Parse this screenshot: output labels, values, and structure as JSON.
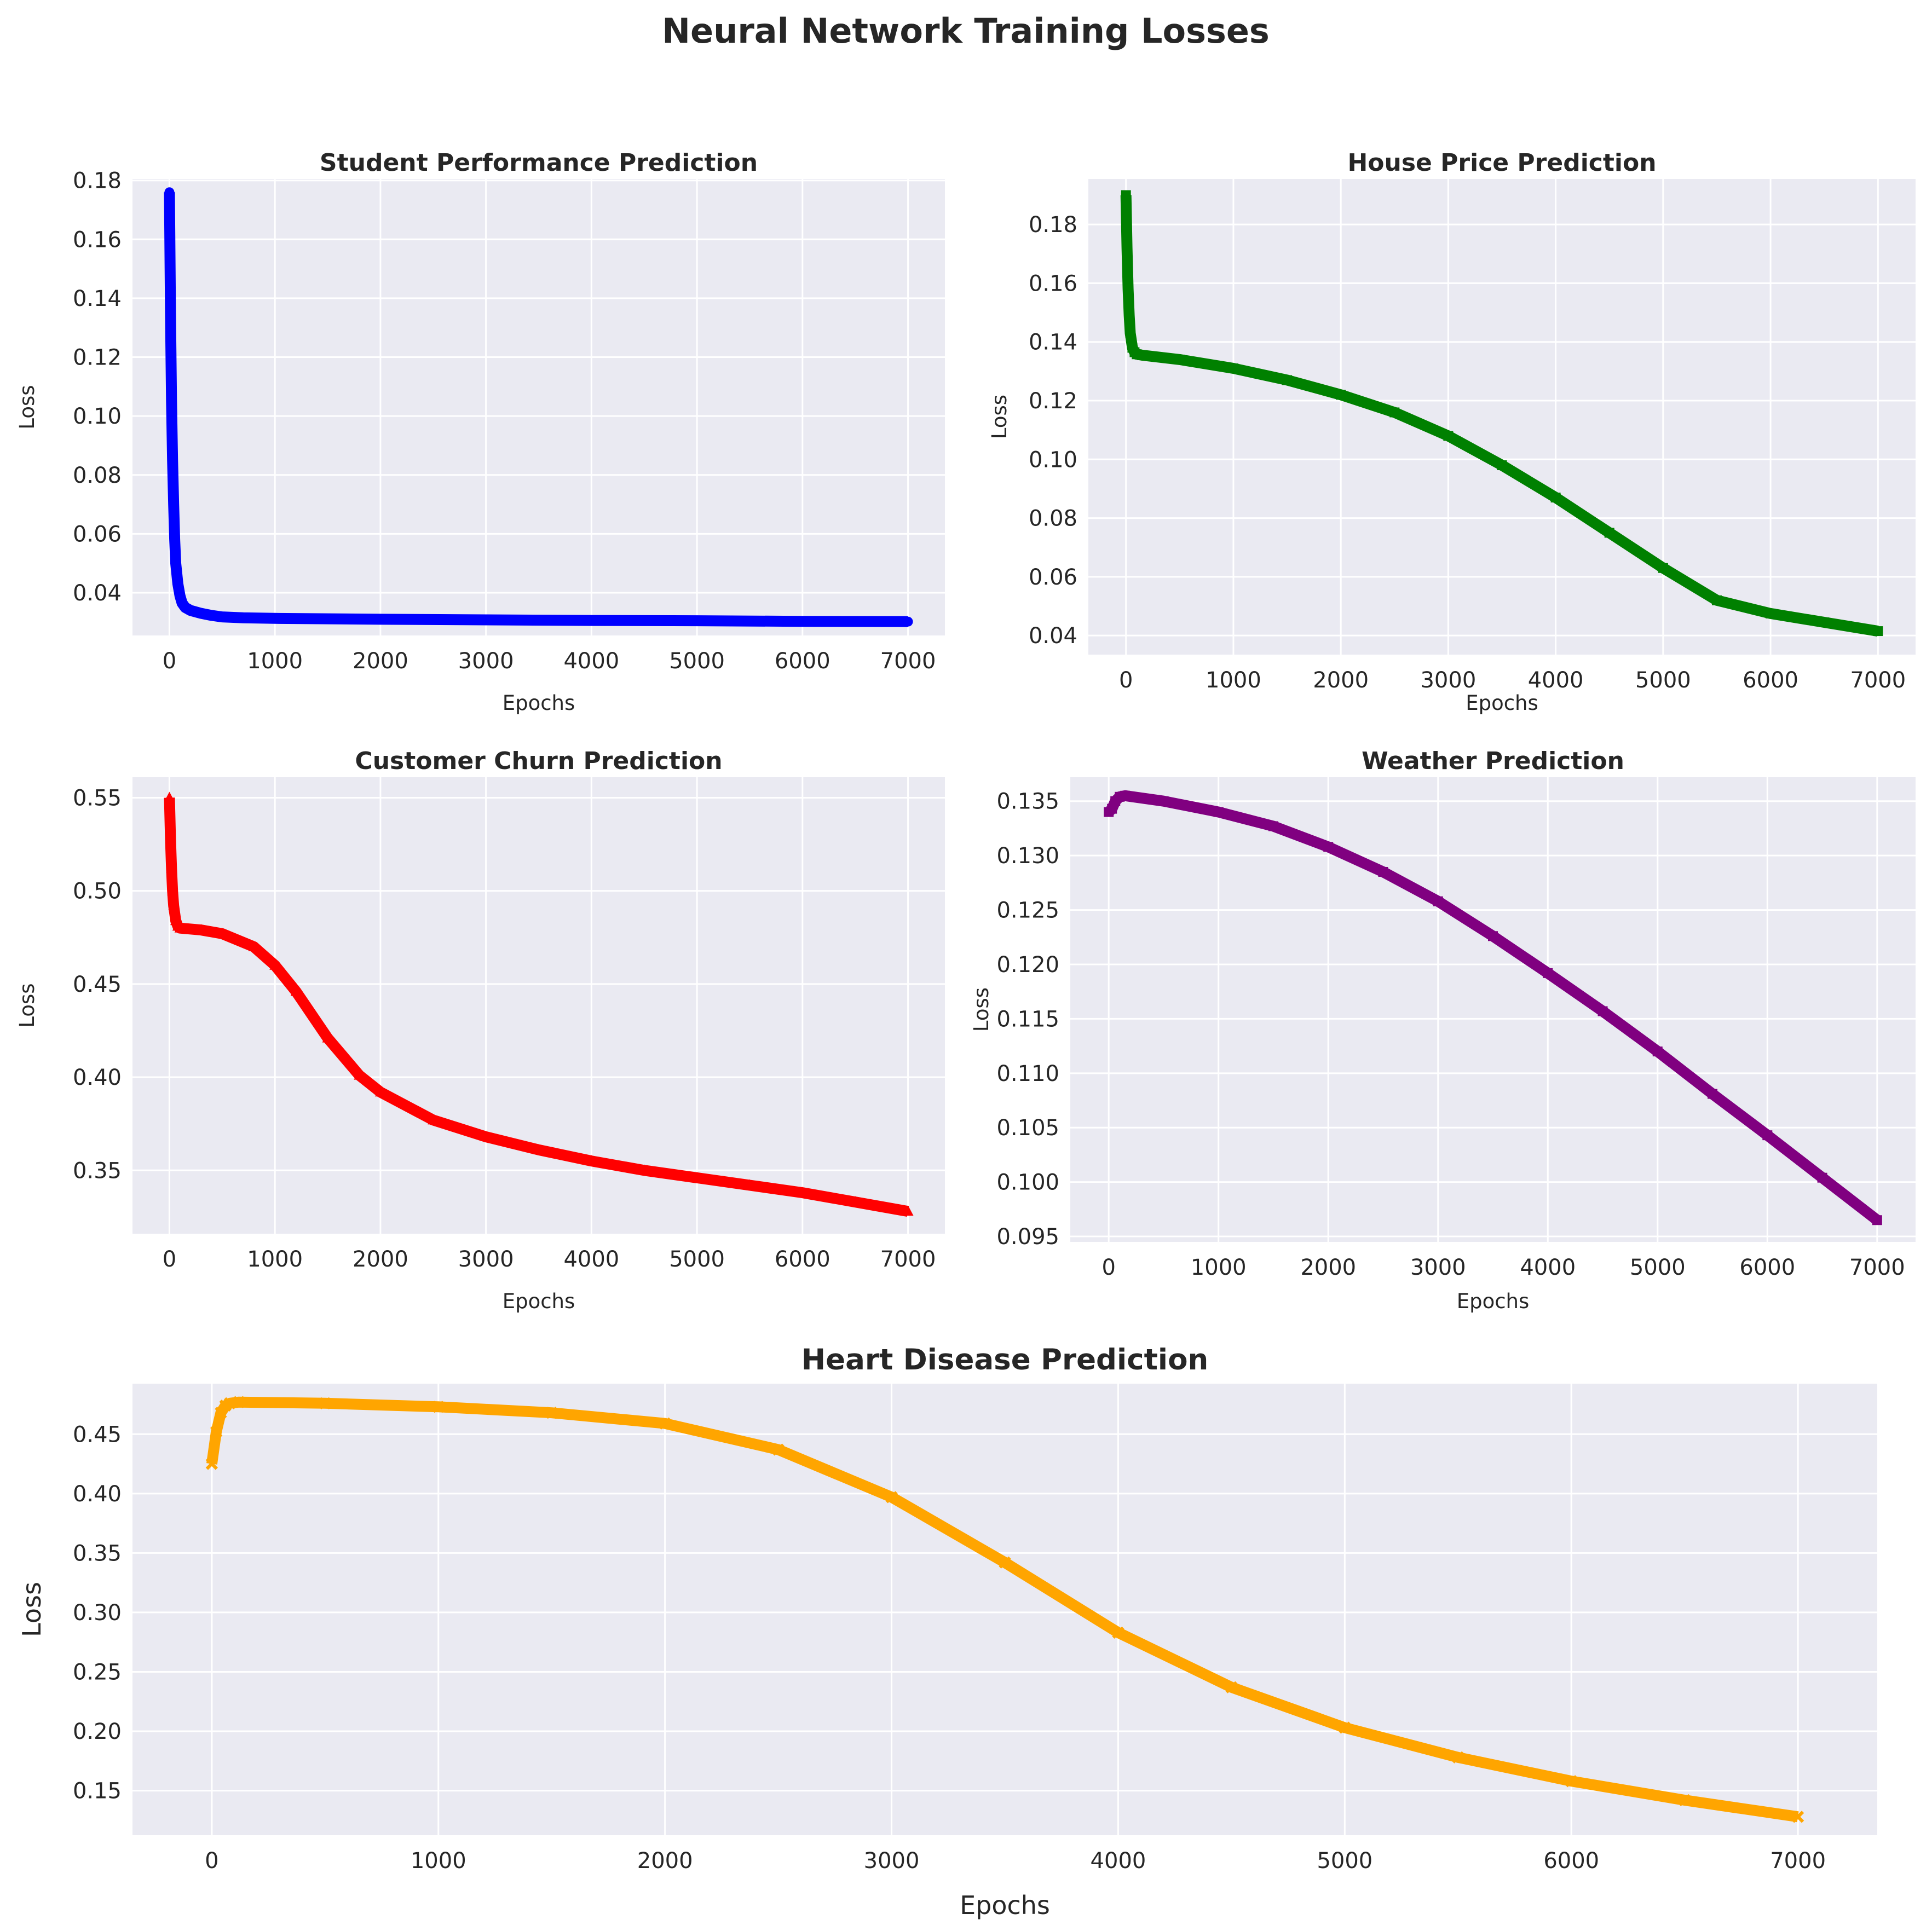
{
  "figure": {
    "title": "Neural Network Training Losses"
  },
  "chart_data": [
    {
      "type": "line",
      "title": "Student Performance Prediction",
      "xlabel": "Epochs",
      "ylabel": "Loss",
      "color": "#0000ff",
      "marker": "circle",
      "xlim": [
        -350,
        7350
      ],
      "ylim": [
        0.0255,
        0.1805
      ],
      "xticks": [
        "0",
        "1000",
        "2000",
        "3000",
        "4000",
        "5000",
        "6000",
        "7000"
      ],
      "yticks": [
        "0.04",
        "0.06",
        "0.08",
        "0.10",
        "0.12",
        "0.14",
        "0.16",
        "0.18"
      ],
      "x": [
        0,
        10,
        20,
        30,
        40,
        50,
        60,
        80,
        100,
        120,
        150,
        200,
        300,
        400,
        500,
        700,
        1000,
        2000,
        3000,
        4000,
        5000,
        6000,
        7000
      ],
      "y": [
        0.176,
        0.135,
        0.105,
        0.085,
        0.07,
        0.058,
        0.05,
        0.043,
        0.039,
        0.0365,
        0.035,
        0.034,
        0.033,
        0.0323,
        0.0318,
        0.0315,
        0.0313,
        0.031,
        0.0308,
        0.0306,
        0.0305,
        0.0303,
        0.0302
      ],
      "grid": true
    },
    {
      "type": "line",
      "title": "House Price Prediction",
      "xlabel": "Epochs",
      "ylabel": "Loss",
      "color": "#008000",
      "marker": "square",
      "xlim": [
        -350,
        7350
      ],
      "ylim": [
        0.0335,
        0.1955
      ],
      "xticks": [
        "0",
        "1000",
        "2000",
        "3000",
        "4000",
        "5000",
        "6000",
        "7000"
      ],
      "yticks": [
        "0.04",
        "0.06",
        "0.08",
        "0.10",
        "0.12",
        "0.14",
        "0.16",
        "0.18"
      ],
      "x": [
        0,
        10,
        20,
        30,
        40,
        60,
        80,
        100,
        150,
        500,
        1000,
        1500,
        2000,
        2500,
        3000,
        3500,
        4000,
        4500,
        5000,
        5500,
        6000,
        6500,
        7000
      ],
      "y": [
        0.19,
        0.172,
        0.158,
        0.149,
        0.143,
        0.138,
        0.1365,
        0.1358,
        0.1355,
        0.134,
        0.131,
        0.127,
        0.122,
        0.116,
        0.108,
        0.098,
        0.087,
        0.075,
        0.063,
        0.052,
        0.0475,
        0.0445,
        0.0415
      ],
      "grid": true
    },
    {
      "type": "line",
      "title": "Customer Churn Prediction",
      "xlabel": "Epochs",
      "ylabel": "Loss",
      "color": "#ff0000",
      "marker": "triangle",
      "xlim": [
        -350,
        7350
      ],
      "ylim": [
        0.316,
        0.561
      ],
      "xticks": [
        "0",
        "1000",
        "2000",
        "3000",
        "4000",
        "5000",
        "6000",
        "7000"
      ],
      "yticks": [
        "0.35",
        "0.40",
        "0.45",
        "0.50",
        "0.55"
      ],
      "x": [
        0,
        10,
        20,
        30,
        40,
        60,
        80,
        100,
        300,
        500,
        800,
        1000,
        1200,
        1500,
        1800,
        2000,
        2500,
        3000,
        3500,
        4000,
        4500,
        5000,
        5500,
        6000,
        6500,
        7000
      ],
      "y": [
        0.55,
        0.528,
        0.512,
        0.5,
        0.492,
        0.484,
        0.481,
        0.48,
        0.479,
        0.477,
        0.47,
        0.46,
        0.446,
        0.421,
        0.401,
        0.392,
        0.377,
        0.368,
        0.361,
        0.355,
        0.35,
        0.346,
        0.342,
        0.338,
        0.333,
        0.328
      ],
      "grid": true
    },
    {
      "type": "line",
      "title": "Weather Prediction",
      "xlabel": "Epochs",
      "ylabel": "Loss",
      "color": "#800080",
      "marker": "square",
      "xlim": [
        -350,
        7350
      ],
      "ylim": [
        0.0945,
        0.1372
      ],
      "xticks": [
        "0",
        "1000",
        "2000",
        "3000",
        "4000",
        "5000",
        "6000",
        "7000"
      ],
      "yticks": [
        "0.095",
        "0.100",
        "0.105",
        "0.110",
        "0.115",
        "0.120",
        "0.125",
        "0.130",
        "0.135"
      ],
      "x": [
        0,
        30,
        60,
        100,
        150,
        500,
        1000,
        1500,
        2000,
        2500,
        3000,
        3500,
        4000,
        4500,
        5000,
        5500,
        6000,
        6500,
        7000
      ],
      "y": [
        0.134,
        0.1343,
        0.135,
        0.1354,
        0.1355,
        0.135,
        0.134,
        0.1327,
        0.1308,
        0.1285,
        0.1258,
        0.1226,
        0.1192,
        0.1157,
        0.112,
        0.1081,
        0.1043,
        0.1004,
        0.0965
      ],
      "grid": true
    },
    {
      "type": "line",
      "title": "Heart Disease Prediction",
      "xlabel": "Epochs",
      "ylabel": "Loss",
      "color": "#ffa500",
      "marker": "x",
      "xlim": [
        -350,
        7350
      ],
      "ylim": [
        0.1125,
        0.4925
      ],
      "xticks": [
        "0",
        "1000",
        "2000",
        "3000",
        "4000",
        "5000",
        "6000",
        "7000"
      ],
      "yticks": [
        "0.15",
        "0.20",
        "0.25",
        "0.30",
        "0.35",
        "0.40",
        "0.45"
      ],
      "x": [
        0,
        20,
        40,
        60,
        80,
        120,
        500,
        1000,
        1500,
        2000,
        2500,
        3000,
        3500,
        4000,
        4500,
        5000,
        5500,
        6000,
        6500,
        7000
      ],
      "y": [
        0.425,
        0.452,
        0.468,
        0.474,
        0.476,
        0.477,
        0.476,
        0.473,
        0.468,
        0.459,
        0.437,
        0.397,
        0.342,
        0.283,
        0.237,
        0.203,
        0.178,
        0.158,
        0.142,
        0.128
      ],
      "grid": true
    }
  ]
}
